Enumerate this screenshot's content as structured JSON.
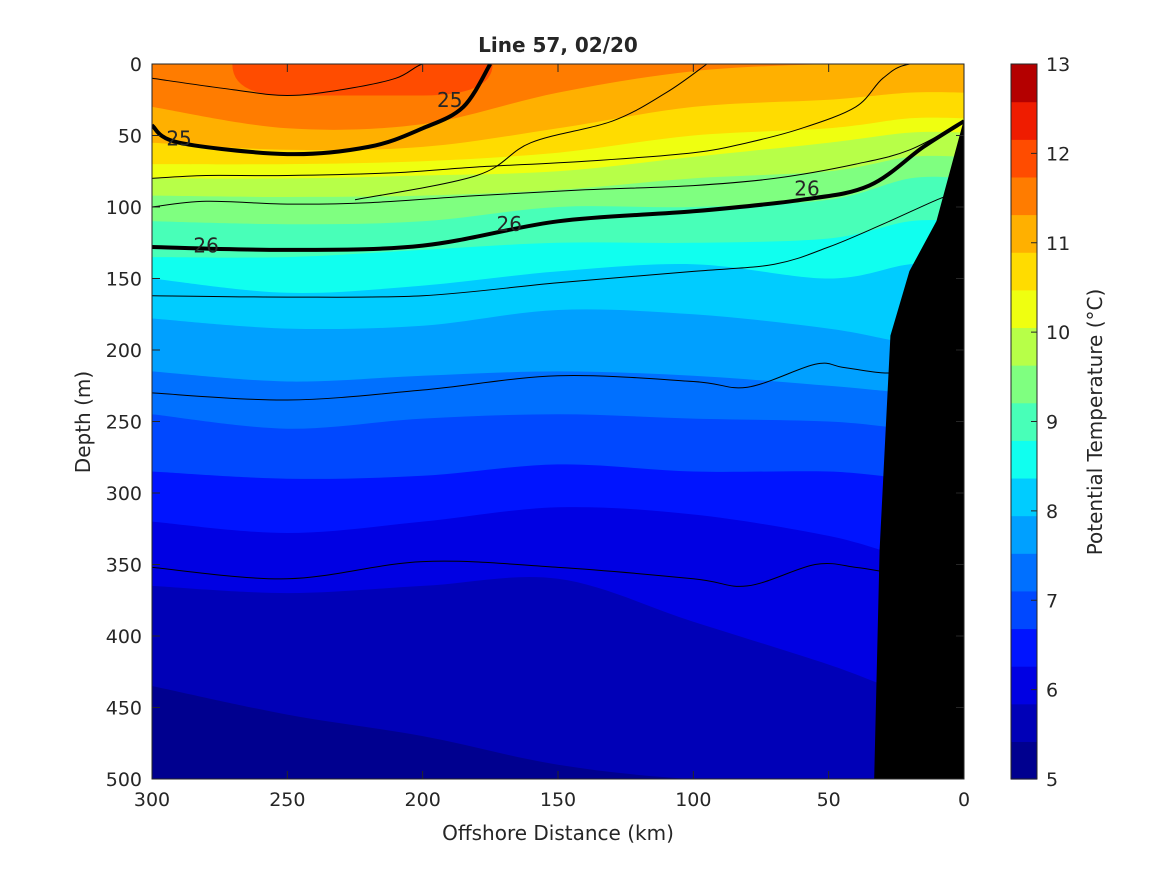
{
  "chart_data": {
    "type": "heatmap",
    "title": "Line 57, 02/20",
    "xlabel": "Offshore Distance (km)",
    "ylabel": "Depth (m)",
    "xlim": [
      300,
      0
    ],
    "ylim": [
      0,
      500
    ],
    "x_direction": "reversed",
    "y_direction": "depth-downward",
    "x_ticks": [
      300,
      250,
      200,
      150,
      100,
      50,
      0
    ],
    "y_ticks": [
      0,
      50,
      100,
      150,
      200,
      250,
      300,
      350,
      400,
      450,
      500
    ],
    "colorbar": {
      "label": "Potential Temperature (°C)",
      "min": 5,
      "max": 13,
      "ticks": [
        5,
        6,
        7,
        8,
        9,
        10,
        11,
        12,
        13
      ],
      "level_step": 0.5,
      "level_colors": [
        "#00008f",
        "#0000b7",
        "#0000e3",
        "#0014ff",
        "#0048ff",
        "#0070ff",
        "#00a0ff",
        "#00ccff",
        "#10ffef",
        "#48ffb8",
        "#7fff80",
        "#b7ff48",
        "#efff10",
        "#ffdc00",
        "#ffb000",
        "#ff7c00",
        "#ff4c00",
        "#ef1c00",
        "#b40000"
      ]
    },
    "isotherm_depths_m": {
      "x_km": [
        300,
        250,
        200,
        150,
        100,
        50,
        20
      ],
      "t12.5": [
        null,
        22,
        22,
        null,
        null,
        null,
        null
      ],
      "t12": [
        30,
        45,
        42,
        20,
        5,
        0,
        0
      ],
      "t11.5": [
        55,
        60,
        58,
        45,
        30,
        25,
        20
      ],
      "t11": [
        70,
        70,
        68,
        62,
        50,
        45,
        38
      ],
      "t10.5": [
        80,
        80,
        78,
        75,
        65,
        55,
        48
      ],
      "t10": [
        92,
        93,
        92,
        88,
        80,
        75,
        65
      ],
      "t9.5": [
        110,
        112,
        110,
        100,
        100,
        95,
        80
      ],
      "t9": [
        135,
        135,
        130,
        125,
        125,
        122,
        110
      ],
      "t8.5": [
        150,
        160,
        155,
        145,
        140,
        150,
        140
      ],
      "t8": [
        178,
        185,
        183,
        172,
        175,
        185,
        195
      ],
      "t7.5": [
        215,
        222,
        218,
        215,
        218,
        225,
        230
      ],
      "t7": [
        245,
        255,
        248,
        245,
        248,
        250,
        255
      ],
      "t6.5": [
        285,
        290,
        288,
        280,
        285,
        285,
        290
      ],
      "t6": [
        320,
        328,
        320,
        310,
        315,
        330,
        345
      ],
      "t5.5": [
        365,
        370,
        365,
        360,
        390,
        420,
        440
      ],
      "t5": [
        435,
        455,
        470,
        490,
        500,
        500,
        500
      ]
    },
    "density_contours": [
      {
        "label": "25",
        "bold": true,
        "x_km": [
          300,
          290,
          250,
          220,
          200,
          185,
          175
        ],
        "depth_m": [
          43,
          55,
          63,
          58,
          45,
          30,
          0
        ]
      },
      {
        "label": "26",
        "bold": true,
        "x_km": [
          300,
          250,
          200,
          150,
          100,
          60,
          35,
          15,
          0
        ],
        "depth_m": [
          128,
          130,
          127,
          110,
          103,
          95,
          85,
          58,
          40
        ]
      }
    ],
    "thin_contours": [
      {
        "x_km": [
          300,
          270,
          250,
          230,
          210,
          200,
          190
        ],
        "depth_m": [
          10,
          18,
          22,
          18,
          10,
          0,
          0
        ]
      },
      {
        "x_km": [
          300,
          280,
          250,
          210,
          180,
          140,
          100,
          80,
          60,
          40,
          30,
          20,
          0
        ],
        "depth_m": [
          80,
          78,
          78,
          76,
          72,
          68,
          62,
          55,
          45,
          30,
          10,
          0,
          0
        ]
      },
      {
        "x_km": [
          300,
          280,
          250,
          220,
          180,
          140,
          100,
          70,
          40,
          20,
          0
        ],
        "depth_m": [
          100,
          96,
          98,
          97,
          92,
          88,
          85,
          80,
          70,
          60,
          40
        ]
      },
      {
        "x_km": [
          300,
          250,
          200,
          150,
          100,
          70,
          50,
          30,
          10,
          0
        ],
        "depth_m": [
          162,
          163,
          162,
          153,
          145,
          140,
          128,
          112,
          95,
          88
        ]
      },
      {
        "x_km": [
          300,
          250,
          200,
          150,
          100,
          80,
          55,
          45,
          30,
          20
        ],
        "depth_m": [
          230,
          235,
          228,
          218,
          222,
          226,
          210,
          212,
          216,
          215
        ]
      },
      {
        "x_km": [
          300,
          250,
          200,
          150,
          100,
          80,
          55,
          40,
          30
        ],
        "depth_m": [
          352,
          360,
          348,
          352,
          360,
          365,
          350,
          352,
          355
        ]
      },
      {
        "x_km": [
          225,
          180,
          160,
          130,
          110,
          95
        ],
        "depth_m": [
          95,
          78,
          55,
          40,
          20,
          0
        ]
      }
    ],
    "contour_labels": [
      {
        "text": "25",
        "x_km": 290,
        "depth_m": 52
      },
      {
        "text": "25",
        "x_km": 190,
        "depth_m": 25
      },
      {
        "text": "26",
        "x_km": 280,
        "depth_m": 127
      },
      {
        "text": "26",
        "x_km": 168,
        "depth_m": 112
      },
      {
        "text": "26",
        "x_km": 58,
        "depth_m": 87
      }
    ],
    "bathymetry": {
      "label": "seafloor",
      "x_km": [
        33,
        31,
        27,
        20,
        10,
        0
      ],
      "depth_m": [
        500,
        340,
        190,
        145,
        110,
        40
      ]
    }
  }
}
